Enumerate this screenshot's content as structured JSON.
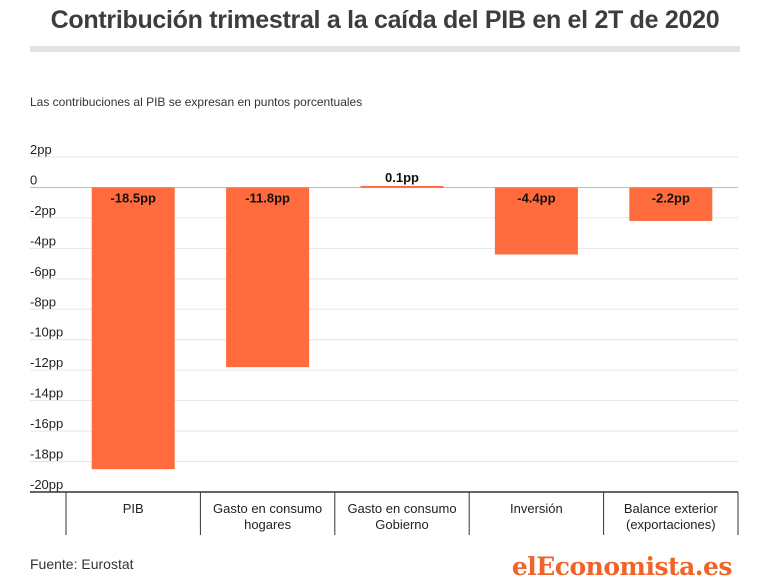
{
  "title": "Contribución trimestral a la caída del PIB en el 2T de 2020",
  "subtitle": "Las contribuciones al PIB se expresan en puntos porcentuales",
  "source": "Fuente: Eurostat",
  "logo": "elEconomista.es",
  "colors": {
    "bar": "#ff6b3d",
    "grid": "#e6e6e6",
    "axis": "#333333"
  },
  "chart_data": {
    "type": "bar",
    "title": "Contribución trimestral a la caída del PIB en el 2T de 2020",
    "subtitle": "Las contribuciones al PIB se expresan en puntos porcentuales",
    "categories": [
      [
        "PIB"
      ],
      [
        "Gasto en consumo",
        "hogares"
      ],
      [
        "Gasto en consumo",
        "Gobierno"
      ],
      [
        "Inversión"
      ],
      [
        "Balance exterior",
        "(exportaciones)"
      ]
    ],
    "values": [
      -18.5,
      -11.8,
      0.1,
      -4.4,
      -2.2
    ],
    "data_labels": [
      "-18.5pp",
      "-11.8pp",
      "0.1pp",
      "-4.4pp",
      "-2.2pp"
    ],
    "yticks": [
      2,
      0,
      -2,
      -4,
      -6,
      -8,
      -10,
      -12,
      -14,
      -16,
      -18,
      -20
    ],
    "ytick_labels": [
      "2pp",
      "0",
      "-2pp",
      "-4pp",
      "-6pp",
      "-8pp",
      "-10pp",
      "-12pp",
      "-14pp",
      "-16pp",
      "-18pp",
      "-20pp"
    ],
    "ylim": [
      -20,
      2
    ],
    "grid": true
  }
}
